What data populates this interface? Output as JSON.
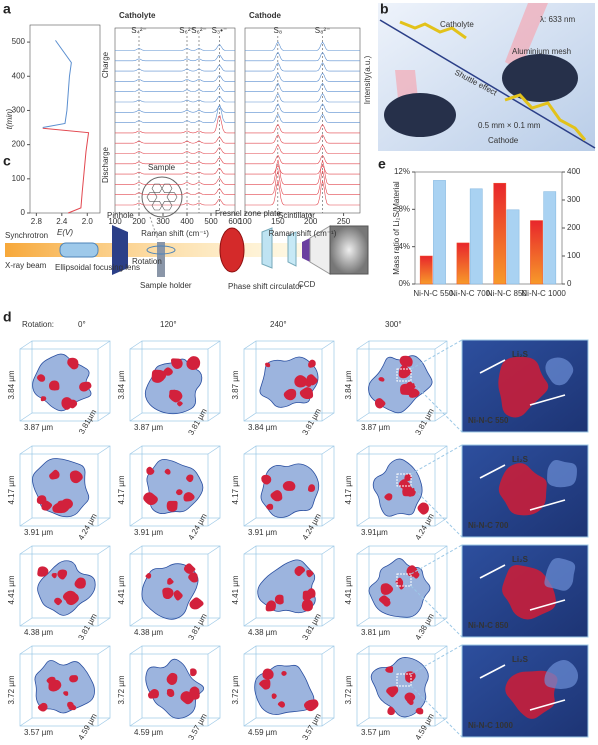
{
  "panel_labels": [
    "a",
    "b",
    "c",
    "d",
    "e"
  ],
  "chart_data": [
    {
      "type": "line",
      "xlabel": "E(V)",
      "ylabel": "t(min)",
      "xlim": [
        2.9,
        1.8
      ],
      "ylim": [
        0,
        550
      ],
      "xticks": [
        2.8,
        2.4,
        {
          "value": 2,
          "label": "2.0"
        }
      ],
      "yticks": [
        0,
        100,
        200,
        300,
        400,
        500
      ],
      "annotations": [
        "Charge",
        "Discharge"
      ],
      "series": [
        {
          "color": "#e2474f",
          "x": [
            2.3,
            2.1,
            2.08,
            2.05,
            2.02,
            1.98,
            2.7
          ],
          "values": [
            0,
            15,
            60,
            120,
            180,
            235,
            248
          ]
        },
        {
          "color": "#5b8fd0",
          "x": [
            2.7,
            2.35,
            2.32,
            2.3,
            2.28,
            2.25,
            2.5
          ],
          "values": [
            250,
            262,
            300,
            350,
            400,
            440,
            505
          ]
        }
      ]
    },
    {
      "type": "spectra",
      "title": "Catholyte",
      "xlabel": "Raman shift (cm⁻¹)",
      "xlim": [
        100,
        600
      ],
      "xticks": [
        100,
        200,
        300,
        400,
        500,
        600
      ],
      "colors": [
        "#e2474f",
        "#5b8fd0"
      ],
      "peaks": [
        {
          "label": "S₄²⁻",
          "x": 200
        },
        {
          "label": "S₆²⁻",
          "x": 400
        },
        {
          "label": "S₆²⁻",
          "x": 450
        },
        {
          "label": "S₃•⁻",
          "x": 535
        }
      ]
    },
    {
      "type": "spectra",
      "title": "Cathode",
      "xlabel": "Raman shift (cm⁻¹)",
      "ylabel": "Intensity(a.u.)",
      "xlim": [
        100,
        275
      ],
      "xticks": [
        100,
        150,
        200,
        250
      ],
      "colors": [
        "#e2474f",
        "#5b8fd0"
      ],
      "peaks": [
        {
          "label": "S₈",
          "x": 150
        },
        {
          "label": "S₈²⁻",
          "x": 218
        }
      ]
    },
    {
      "type": "bar",
      "ylabel": "Mass ratio of Li₂S/Material",
      "categories": [
        "Ni-N-C 550",
        "Ni-N-C 700",
        "Ni-N-C 850",
        "Ni-N-C 1000"
      ],
      "ylim": [
        0,
        12
      ],
      "yticks": [
        {
          "value": 0,
          "label": "0%"
        },
        {
          "value": 4,
          "label": "4%"
        },
        {
          "value": 8,
          "label": "8%"
        },
        {
          "value": 12,
          "label": "12%"
        }
      ],
      "y2lim": [
        0,
        400
      ],
      "y2ticks": [
        0,
        100,
        200,
        300,
        400
      ],
      "series": [
        {
          "color": "#f0502a",
          "values": [
            3.0,
            4.4,
            10.8,
            6.8
          ]
        },
        {
          "color": "#a9d2f2",
          "axis": "y2",
          "values": [
            370,
            340,
            265,
            330
          ]
        }
      ]
    }
  ],
  "illustration_b": {
    "catholyte": "Catholyte",
    "laser": "λ: 633 nm",
    "mesh": "Aluminium mesh",
    "shuttle": "Shuttle effect",
    "size": "0.5 mm × 0.1 mm",
    "cathode": "Cathode"
  },
  "setup_c": {
    "sample": "Sample",
    "pinhole": "Pinhole",
    "fresnel": "Fresnel zone plate",
    "scintillator": "Scintillator",
    "synchrotron": "Synchrotron",
    "xray": "X-ray beam",
    "lens": "Ellipsoidal focusing lens",
    "rotation": "Rotation",
    "holder": "Sample holder",
    "phase": "Phase shift circulator",
    "ccd": "CCD"
  },
  "tomography_d": {
    "header": "Rotation:",
    "angles": [
      "0°",
      "120°",
      "240°",
      "300°"
    ],
    "rows": [
      {
        "cells": [
          [
            "3.84 µm",
            "3.87 µm",
            "3.81µm"
          ],
          [
            "3.84 µm",
            "3.87 µm",
            "3.81 µm"
          ],
          [
            "3.87 µm",
            "3.84 µm",
            "3.81 µm"
          ],
          [
            "3.84 µm",
            "3.87 µm",
            "3.81 µm"
          ]
        ],
        "inset": [
          "Li₂S",
          "Ni-N-C 550"
        ]
      },
      {
        "cells": [
          [
            "4.17 µm",
            "3.91 µm",
            "4.24 µm"
          ],
          [
            "4.17 µm",
            "3.91 µm",
            "4.24 µm"
          ],
          [
            "4.17 µm",
            "3.91 µm",
            "4.24 µm"
          ],
          [
            "4.17 µm",
            "3.91µm",
            "4.24 µm"
          ]
        ],
        "inset": [
          "Li₂S",
          "Ni-N-C 700"
        ]
      },
      {
        "cells": [
          [
            "4.41 µm",
            "4.38 µm",
            "3.81 µm"
          ],
          [
            "4.41 µm",
            "4.38 µm",
            "3.81 µm"
          ],
          [
            "4.41 µm",
            "4.38 µm",
            "3.81 µm"
          ],
          [
            "4.41 µm",
            "3.81 µm",
            "4.38 µm"
          ]
        ],
        "inset": [
          "Li₂S",
          "Ni-N-C 850"
        ]
      },
      {
        "cells": [
          [
            "3.72 µm",
            "3.57 µm",
            "4.59 µm"
          ],
          [
            "3.72 µm",
            "4.59 µm",
            "3.57 µm"
          ],
          [
            "3.72 µm",
            "4.59 µm",
            "3.57 µm"
          ],
          [
            "3.72 µm",
            "3.57 µm",
            "4.59 µm"
          ]
        ],
        "inset": [
          "Li₂S",
          "Ni-N-C 1000"
        ]
      }
    ]
  }
}
